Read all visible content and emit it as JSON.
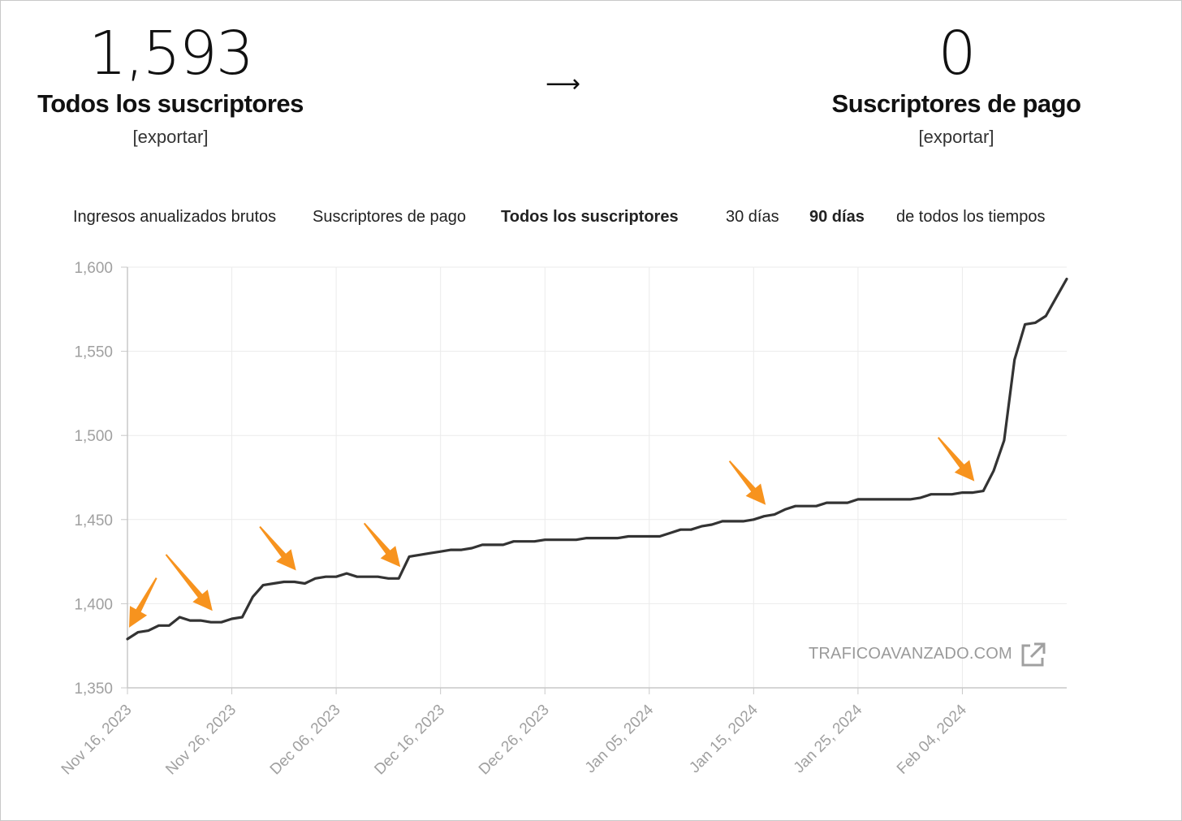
{
  "summary": {
    "left": {
      "value": "1,593",
      "label": "Todos los suscriptores",
      "export": "[exportar]"
    },
    "arrow": "⟶",
    "right": {
      "value": "0",
      "label": "Suscriptores de pago",
      "export": "[exportar]"
    }
  },
  "metric_tabs": [
    "Ingresos anualizados brutos",
    "Suscriptores de pago",
    "Todos los suscriptores"
  ],
  "active_metric": "Todos los suscriptores",
  "range_tabs": [
    "30 días",
    "90 días",
    "de todos los tiempos"
  ],
  "active_range": "90 días",
  "watermark": "TRAFICOAVANZADO.COM",
  "colors": {
    "line": "#333333",
    "grid": "#ebebeb",
    "axis_text": "#a0a0a0",
    "annotation_arrow": "#f7931e"
  },
  "chart_data": {
    "type": "line",
    "x_start": "2023-11-16",
    "x_end": "2024-02-14",
    "ylim": [
      1350,
      1600
    ],
    "y_ticks": [
      "1,350",
      "1,400",
      "1,450",
      "1,500",
      "1,550",
      "1,600"
    ],
    "x_ticks": [
      "Nov 16, 2023",
      "Nov 26, 2023",
      "Dec 06, 2023",
      "Dec 16, 2023",
      "Dec 26, 2023",
      "Jan 05, 2024",
      "Jan 15, 2024",
      "Jan 25, 2024",
      "Feb 04, 2024"
    ],
    "grid": true,
    "values": [
      1379,
      1383,
      1384,
      1387,
      1387,
      1392,
      1390,
      1390,
      1389,
      1389,
      1391,
      1392,
      1404,
      1411,
      1412,
      1413,
      1413,
      1412,
      1415,
      1416,
      1416,
      1418,
      1416,
      1416,
      1416,
      1415,
      1415,
      1428,
      1429,
      1430,
      1431,
      1432,
      1432,
      1433,
      1435,
      1435,
      1435,
      1437,
      1437,
      1437,
      1438,
      1438,
      1438,
      1438,
      1439,
      1439,
      1439,
      1439,
      1440,
      1440,
      1440,
      1440,
      1442,
      1444,
      1444,
      1446,
      1447,
      1449,
      1449,
      1449,
      1450,
      1452,
      1453,
      1456,
      1458,
      1458,
      1458,
      1460,
      1460,
      1460,
      1462,
      1462,
      1462,
      1462,
      1462,
      1462,
      1463,
      1465,
      1465,
      1465,
      1466,
      1466,
      1467,
      1479,
      1497,
      1545,
      1566,
      1567,
      1571,
      1582,
      1593
    ],
    "annotation_arrows_at_day": [
      0,
      8,
      16,
      26,
      61,
      81
    ]
  }
}
